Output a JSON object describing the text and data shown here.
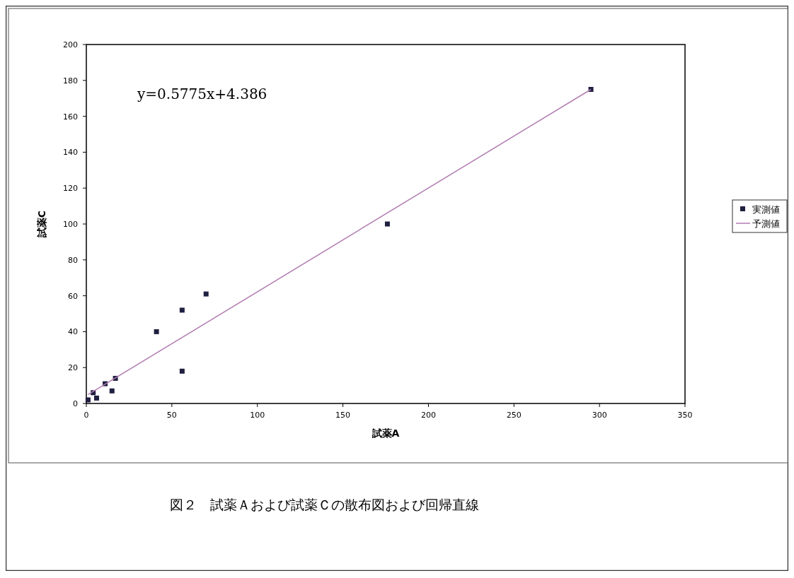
{
  "chart_data": {
    "type": "scatter",
    "title": "図２　試薬Ａおよび試薬Ｃの散布図および回帰直線",
    "xlabel": "試薬A",
    "ylabel": "試薬C",
    "annotations": [
      "y=0.5775x+4.386"
    ],
    "xlim": [
      0,
      350
    ],
    "xticks": [
      0,
      50,
      100,
      150,
      200,
      250,
      300,
      350
    ],
    "ylim": [
      0,
      200
    ],
    "yticks": [
      0,
      20,
      40,
      60,
      80,
      100,
      120,
      140,
      160,
      180,
      200
    ],
    "grid": false,
    "legend": "right",
    "marker": "square",
    "series": [
      {
        "name": "実測値",
        "color": "#1f1f40",
        "x": [
          295,
          176,
          70,
          56,
          41,
          56,
          17,
          11,
          15,
          4,
          6,
          1
        ],
        "values": [
          175,
          100,
          61,
          52,
          40,
          18,
          14,
          11,
          7,
          6,
          3,
          2
        ]
      },
      {
        "name": "予測値",
        "type": "line",
        "color": "#b07cb0",
        "marker": "none",
        "line_style": "solid",
        "x": [
          1,
          295
        ],
        "values": [
          5,
          175
        ]
      }
    ]
  }
}
